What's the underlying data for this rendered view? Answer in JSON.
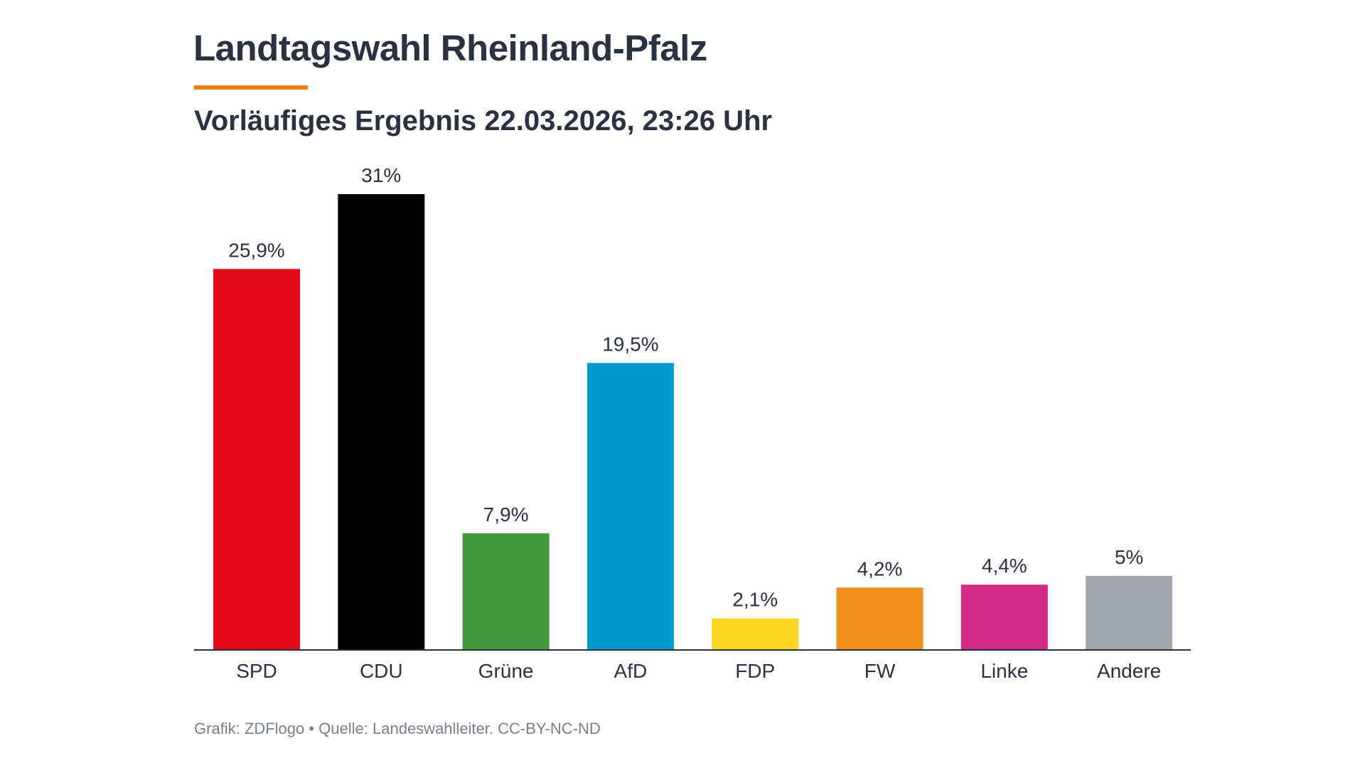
{
  "header": {
    "title": "Landtagswahl Rheinland-Pfalz",
    "subtitle": "Vorläufiges Ergebnis 22.03.2026, 23:26 Uhr",
    "accent_color": "#F07D1A"
  },
  "footer": {
    "text": "Grafik: ZDFlogo • Quelle: Landeswahlleiter. CC-BY-NC-ND"
  },
  "chart_data": {
    "type": "bar",
    "title": "Landtagswahl Rheinland-Pfalz",
    "subtitle": "Vorläufiges Ergebnis 22.03.2026, 23:26 Uhr",
    "categories": [
      "SPD",
      "CDU",
      "Grüne",
      "AfD",
      "FDP",
      "FW",
      "Linke",
      "Andere"
    ],
    "values": [
      25.9,
      31,
      7.9,
      19.5,
      2.1,
      4.2,
      4.4,
      5
    ],
    "value_labels": [
      "25,9%",
      "31%",
      "7,9%",
      "19,5%",
      "2,1%",
      "4,2%",
      "4,4%",
      "5%"
    ],
    "colors": [
      "#E30D19",
      "#000000",
      "#409A3C",
      "#009BCD",
      "#FCD622",
      "#F18F1D",
      "#D02A82",
      "#A3A8AF"
    ],
    "unit": "%",
    "ylim": [
      0,
      31
    ],
    "grid": false,
    "xlabel": "",
    "ylabel": ""
  }
}
